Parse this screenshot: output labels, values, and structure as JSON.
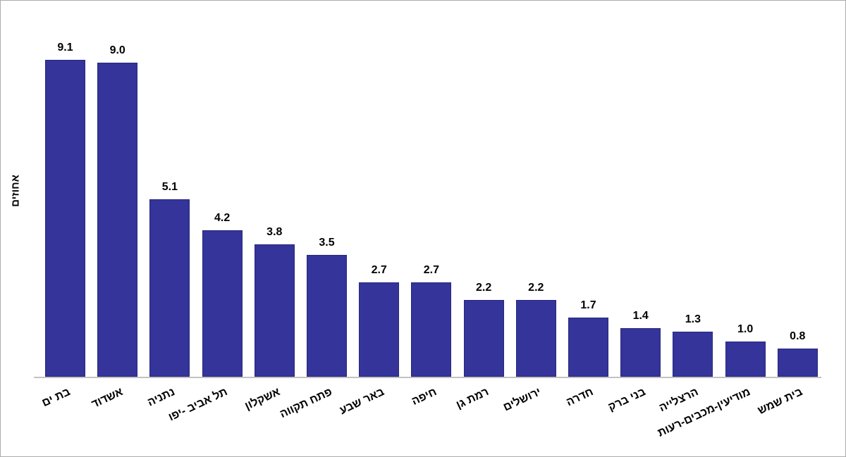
{
  "chart_data": {
    "type": "bar",
    "title": "",
    "xlabel": "",
    "ylabel": "אחוזים",
    "categories": [
      "בת ים",
      "אשדוד",
      "נתניה",
      "תל אביב -יפו",
      "אשקלון",
      "פתח תקווה",
      "באר שבע",
      "חיפה",
      "רמת גן",
      "ירושלים",
      "חדרה",
      "בני ברק",
      "הרצלייה",
      "מודיעין-מכבים-רעות",
      "בית שמש"
    ],
    "values": [
      9.1,
      9.0,
      5.1,
      4.2,
      3.8,
      3.5,
      2.7,
      2.7,
      2.2,
      2.2,
      1.7,
      1.4,
      1.3,
      1.0,
      0.8
    ],
    "value_labels": [
      "9.1",
      "9.0",
      "5.1",
      "4.2",
      "3.8",
      "3.5",
      "2.7",
      "2.7",
      "2.2",
      "2.2",
      "1.7",
      "1.4",
      "1.3",
      "1.0",
      "0.8"
    ],
    "ylim": [
      0,
      10
    ],
    "grid": false,
    "legend": false,
    "category_label_rotation_deg": -25,
    "colors": {
      "bar_fill": "#34349b",
      "bar_border": "#27277e",
      "axis_line": "#c2c2c2",
      "frame_border": "#acacac",
      "text": "#000000",
      "background": "#ffffff"
    }
  }
}
